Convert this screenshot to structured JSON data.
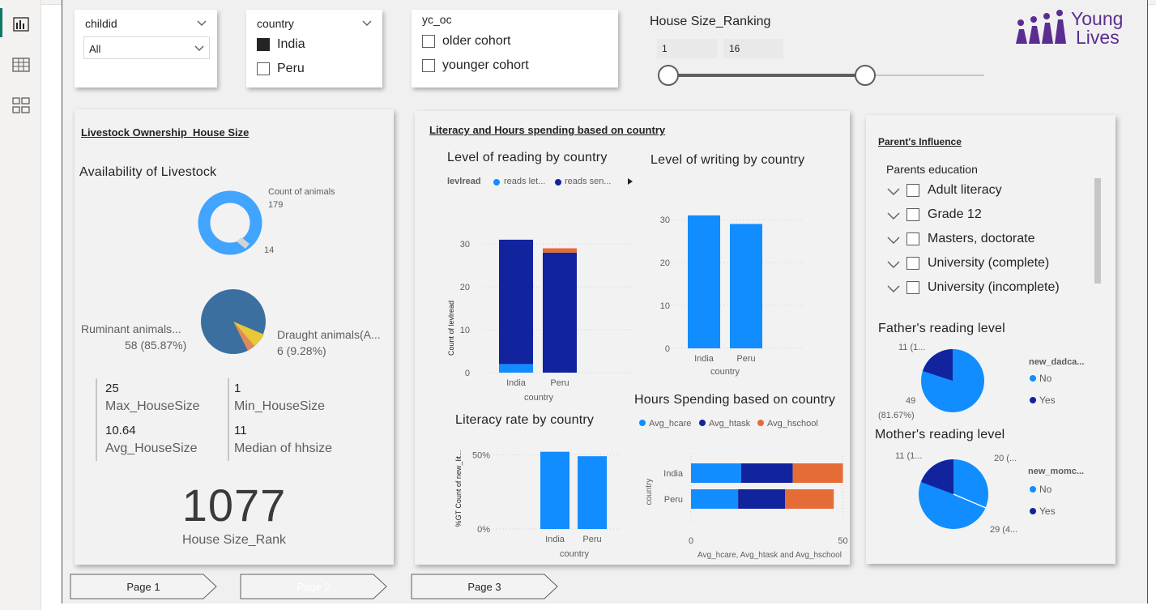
{
  "slicers": {
    "childid": {
      "title": "childid",
      "value": "All"
    },
    "country": {
      "title": "country",
      "options": [
        {
          "label": "India",
          "checked": true
        },
        {
          "label": "Peru",
          "checked": false
        }
      ]
    },
    "yc_oc": {
      "title": "yc_oc",
      "options": [
        {
          "label": "older cohort",
          "checked": false
        },
        {
          "label": "younger cohort",
          "checked": false
        }
      ]
    },
    "house_size": {
      "title": "House Size_Ranking",
      "min": "1",
      "max": "16"
    }
  },
  "logo": {
    "text_line1": "Young",
    "text_line2": "Lives",
    "color": "#5b2d91"
  },
  "livestock_panel": {
    "title": "Livestock Ownership_House Size",
    "donut_title": "Availability of Livestock",
    "donut_label_main": "Count of animals",
    "donut_value_main": "179",
    "donut_value_small": "14",
    "pie_label_left": "Ruminant animals...",
    "pie_value_left": "58 (85.87%)",
    "pie_label_right": "Draught animals(A...",
    "pie_value_right": "6 (9.28%)",
    "kpis": [
      {
        "value": "25",
        "label": "Max_HouseSize"
      },
      {
        "value": "1",
        "label": "Min_HouseSize"
      },
      {
        "value": "10.64",
        "label": "Avg_HouseSize"
      },
      {
        "value": "11",
        "label": "Median of hhsize"
      }
    ],
    "big_number": "1077",
    "big_label": "House Size_Rank"
  },
  "literacy_panel": {
    "title": "Literacy and Hours spending based on country",
    "reading_title": "Level of reading by country",
    "reading_legend_title": "levlread",
    "reading_legend": [
      "reads let...",
      "reads sen..."
    ],
    "writing_title": "Level of writing by country",
    "rate_title": "Literacy rate by country",
    "hours_title": "Hours Spending based on country",
    "hours_legend": [
      "Avg_hcare",
      "Avg_htask",
      "Avg_hschool"
    ],
    "reading_ylabel": "Count of levlread",
    "rate_ylabel": "%GT Count of new_lit...",
    "hours_ylabel": "country",
    "xlabel": "country",
    "hours_xlabel": "Avg_hcare, Avg_htask and Avg_hschool"
  },
  "parents_panel": {
    "title": "Parent's Influence",
    "edu_title": "Parents education",
    "edu_items": [
      "Adult literacy",
      "Grade 12",
      "Masters, doctorate",
      "University (complete)",
      "University (incomplete)"
    ],
    "father_title": "Father's reading level",
    "father_legend_title": "new_dadca...",
    "father_label_small": "11 (1...",
    "father_label_big": "49",
    "father_label_big_pct": "(81.67%)",
    "mother_title": "Mother's reading level",
    "mother_legend_title": "new_momc...",
    "mother_label_a": "11 (1...",
    "mother_label_b": "20 (...",
    "mother_label_c": "29 (4...",
    "legend": [
      "No",
      "Yes"
    ]
  },
  "pages": [
    "Page 1",
    "Page 2",
    "Page 3"
  ],
  "colors": {
    "light_blue": "#118dff",
    "dark_blue": "#12239e",
    "orange": "#e66c37",
    "yellow": "#e8c837",
    "steel": "#3a6fa0",
    "donut": "#41a4ff"
  },
  "chart_data": [
    {
      "type": "bar",
      "title": "Level of reading by country",
      "categories": [
        "India",
        "Peru"
      ],
      "series": [
        {
          "name": "reads let...",
          "values": [
            2,
            0
          ]
        },
        {
          "name": "reads sen...",
          "values": [
            29,
            28
          ]
        },
        {
          "values": [
            0,
            1
          ]
        }
      ],
      "ylabel": "Count of levlread",
      "xlabel": "country",
      "ylim": [
        0,
        34
      ],
      "yticks": [
        0,
        10,
        20,
        30
      ]
    },
    {
      "type": "bar",
      "title": "Level of writing by country",
      "categories": [
        "India",
        "Peru"
      ],
      "values": [
        31,
        29
      ],
      "xlabel": "country",
      "ylim": [
        0,
        34
      ],
      "yticks": [
        0,
        10,
        20,
        30
      ]
    },
    {
      "type": "bar",
      "title": "Literacy rate by country",
      "categories": [
        "India",
        "Peru"
      ],
      "values": [
        52,
        49
      ],
      "ylabel": "%GT Count of new_lit...",
      "xlabel": "country",
      "ylim": [
        0,
        60
      ],
      "yticks": [
        "0%",
        "50%"
      ]
    },
    {
      "type": "bar",
      "title": "Hours Spending based on country",
      "categories": [
        "India",
        "Peru"
      ],
      "series": [
        {
          "name": "Avg_hcare",
          "values": [
            16.5,
            15.5
          ]
        },
        {
          "name": "Avg_htask",
          "values": [
            17,
            15.5
          ]
        },
        {
          "name": "Avg_hschool",
          "values": [
            16.5,
            16
          ]
        }
      ],
      "ylabel": "country",
      "xlabel": "Avg_hcare, Avg_htask and Avg_hschool",
      "xlim": [
        0,
        52
      ],
      "xticks": [
        0,
        50
      ]
    }
  ]
}
